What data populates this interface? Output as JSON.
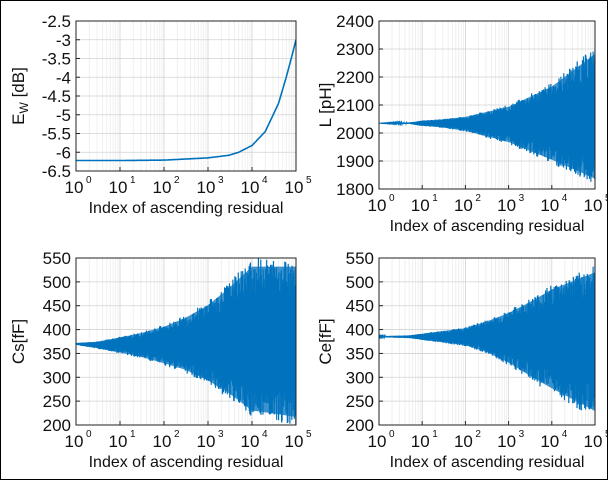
{
  "chart_data": [
    {
      "id": "ew",
      "type": "line",
      "xlabel": "Index of ascending residual",
      "ylabel": "E",
      "ylabel_sub": "W",
      "ylabel_unit": " [dB]",
      "x_scale": "log",
      "xlim": [
        1,
        100000
      ],
      "ylim": [
        -6.5,
        -2.5
      ],
      "x_ticks": [
        1,
        10,
        100,
        1000,
        10000,
        100000
      ],
      "x_tick_labels": [
        "10",
        "10",
        "10",
        "10",
        "10",
        "10"
      ],
      "x_tick_exps": [
        "0",
        "1",
        "2",
        "3",
        "4",
        "5"
      ],
      "y_ticks": [
        -6.5,
        -6,
        -5.5,
        -5,
        -4.5,
        -4,
        -3.5,
        -3,
        -2.5
      ],
      "y_tick_labels": [
        "-6.5",
        "-6",
        "-5.5",
        "-5",
        "-4.5",
        "-4",
        "-3.5",
        "-3",
        "-2.5"
      ],
      "grid": true,
      "color": "#0072bd",
      "series": [
        {
          "x": [
            1,
            10,
            100,
            1000,
            3000,
            5000,
            10000,
            20000,
            40000,
            60000,
            80000,
            100000
          ],
          "y": [
            -6.22,
            -6.22,
            -6.21,
            -6.15,
            -6.08,
            -6.0,
            -5.82,
            -5.45,
            -4.7,
            -4.0,
            -3.45,
            -3.0
          ]
        }
      ]
    },
    {
      "id": "L",
      "type": "area",
      "xlabel": "Index of ascending residual",
      "ylabel": "L [pH]",
      "x_scale": "log",
      "xlim": [
        1,
        100000
      ],
      "ylim": [
        1800,
        2400
      ],
      "x_ticks": [
        1,
        10,
        100,
        1000,
        10000,
        100000
      ],
      "x_tick_labels": [
        "10",
        "10",
        "10",
        "10",
        "10",
        "10"
      ],
      "x_tick_exps": [
        "0",
        "1",
        "2",
        "3",
        "4",
        "5"
      ],
      "y_ticks": [
        1800,
        1900,
        2000,
        2100,
        2200,
        2300,
        2400
      ],
      "y_tick_labels": [
        "1800",
        "1900",
        "2000",
        "2100",
        "2200",
        "2300",
        "2400"
      ],
      "grid": true,
      "color": "#0072bd",
      "center": 2035,
      "envelope": {
        "x": [
          1,
          5,
          10,
          30,
          100,
          1000,
          10000,
          100000
        ],
        "upper": [
          2035,
          2038,
          2045,
          2050,
          2060,
          2100,
          2180,
          2310
        ],
        "lower": [
          2035,
          2032,
          2025,
          2018,
          2005,
          1960,
          1890,
          1815
        ]
      }
    },
    {
      "id": "cs",
      "type": "area",
      "xlabel": "Index of ascending residual",
      "ylabel": "Cs[fF]",
      "x_scale": "log",
      "xlim": [
        1,
        100000
      ],
      "ylim": [
        200,
        550
      ],
      "x_ticks": [
        1,
        10,
        100,
        1000,
        10000,
        100000
      ],
      "x_tick_labels": [
        "10",
        "10",
        "10",
        "10",
        "10",
        "10"
      ],
      "x_tick_exps": [
        "0",
        "1",
        "2",
        "3",
        "4",
        "5"
      ],
      "y_ticks": [
        200,
        250,
        300,
        350,
        400,
        450,
        500,
        550
      ],
      "y_tick_labels": [
        "200",
        "250",
        "300",
        "350",
        "400",
        "450",
        "500",
        "550"
      ],
      "grid": true,
      "color": "#0072bd",
      "center": 370,
      "envelope": {
        "x": [
          1,
          3,
          10,
          30,
          100,
          300,
          1000,
          3000,
          10000,
          100000
        ],
        "upper": [
          372,
          375,
          385,
          395,
          410,
          430,
          460,
          500,
          550,
          550
        ],
        "lower": [
          368,
          360,
          350,
          340,
          325,
          310,
          285,
          255,
          215,
          200
        ]
      }
    },
    {
      "id": "ce",
      "type": "area",
      "xlabel": "Index of ascending residual",
      "ylabel": "Ce[fF]",
      "x_scale": "log",
      "xlim": [
        1,
        100000
      ],
      "ylim": [
        200,
        550
      ],
      "x_ticks": [
        1,
        10,
        100,
        1000,
        10000,
        100000
      ],
      "x_tick_labels": [
        "10",
        "10",
        "10",
        "10",
        "10",
        "10"
      ],
      "x_tick_exps": [
        "0",
        "1",
        "2",
        "3",
        "4",
        "5"
      ],
      "y_ticks": [
        200,
        250,
        300,
        350,
        400,
        450,
        500,
        550
      ],
      "y_tick_labels": [
        "200",
        "250",
        "300",
        "350",
        "400",
        "450",
        "500",
        "550"
      ],
      "grid": true,
      "color": "#0072bd",
      "center": 385,
      "envelope": {
        "x": [
          1,
          5,
          10,
          30,
          100,
          300,
          1000,
          3000,
          10000,
          100000
        ],
        "upper": [
          386,
          388,
          392,
          398,
          405,
          420,
          440,
          465,
          495,
          535
        ],
        "lower": [
          384,
          382,
          378,
          372,
          365,
          350,
          325,
          295,
          265,
          212
        ]
      }
    }
  ]
}
